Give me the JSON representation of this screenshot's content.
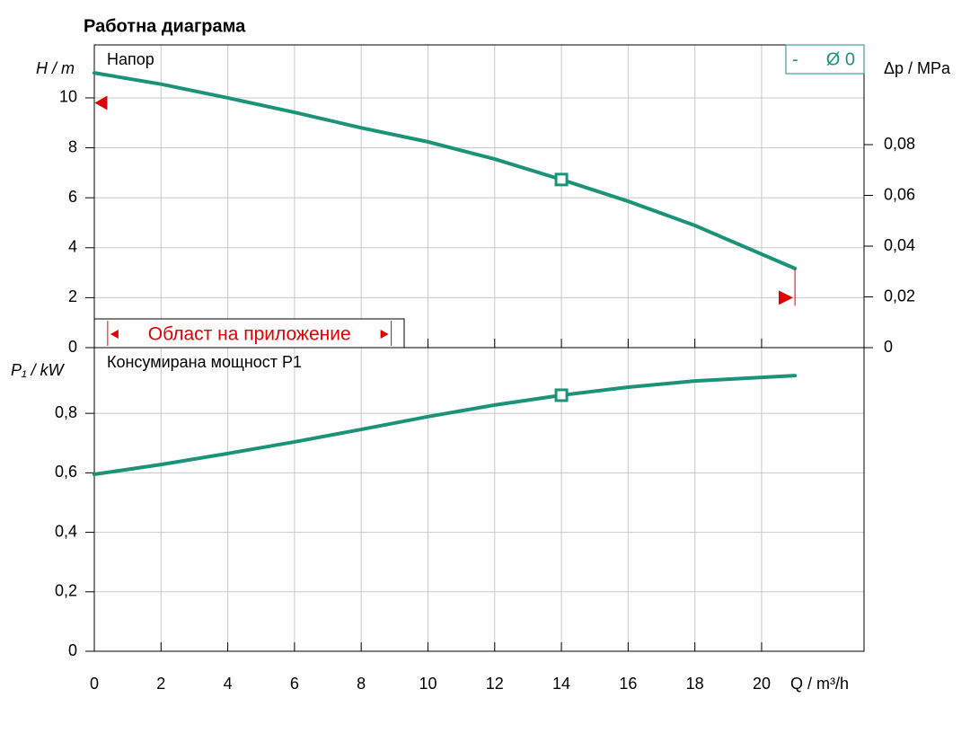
{
  "title": "Работна диаграма",
  "chart_data": [
    {
      "type": "line",
      "subtitle": "Напор",
      "ylabel": "H / m",
      "y2label": "Δp / MPa",
      "x": [
        0,
        2,
        4,
        6,
        8,
        10,
        12,
        14,
        16,
        18,
        21
      ],
      "series": [
        {
          "name": "Ø 0",
          "color": "#1a9378",
          "values": [
            11.0,
            10.55,
            10.0,
            9.42,
            8.8,
            8.24,
            7.55,
            6.73,
            5.86,
            4.89,
            3.17
          ]
        }
      ],
      "legend_prefix": "-",
      "operating_point": {
        "x": 14,
        "y": 6.73
      },
      "limits": [
        {
          "x": 0.2,
          "y": 9.8
        },
        {
          "x": 20.7,
          "y": 2.0
        }
      ],
      "application_range": {
        "label": "Област на приложение",
        "from": 0.4,
        "to": 8.9
      },
      "xlim": [
        0,
        23.07
      ],
      "xticks": [
        0,
        2,
        4,
        6,
        8,
        10,
        12,
        14,
        16,
        18,
        20
      ],
      "ylim": [
        0,
        12.12
      ],
      "yticks": [
        0,
        2,
        4,
        6,
        8,
        10
      ],
      "y2lim": [
        0,
        0.1193
      ],
      "y2ticks": [
        0,
        {
          "value": 0.02,
          "label": "0,02"
        },
        {
          "value": 0.04,
          "label": "0,04"
        },
        {
          "value": 0.06,
          "label": "0,06"
        },
        {
          "value": 0.08,
          "label": "0,08"
        }
      ],
      "grid": true
    },
    {
      "type": "line",
      "subtitle": "Консумирана мощност P1",
      "ylabel": "P₁ / kW",
      "xlabel": "Q / m³/h",
      "x": [
        0,
        2,
        4,
        6,
        8,
        10,
        12,
        14,
        16,
        18,
        21
      ],
      "series": [
        {
          "name": "P1",
          "color": "#1a9378",
          "values": [
            0.595,
            0.628,
            0.665,
            0.704,
            0.746,
            0.789,
            0.828,
            0.861,
            0.888,
            0.909,
            0.927
          ]
        }
      ],
      "operating_point": {
        "x": 14,
        "y": 0.861
      },
      "xlim": [
        0,
        23.07
      ],
      "xticks": [
        0,
        2,
        4,
        6,
        8,
        10,
        12,
        14,
        16,
        18,
        20
      ],
      "ylim": [
        0,
        1.021
      ],
      "yticks": [
        0,
        {
          "value": 0.2,
          "label": "0,2"
        },
        {
          "value": 0.4,
          "label": "0,4"
        },
        {
          "value": 0.6,
          "label": "0,6"
        },
        {
          "value": 0.8,
          "label": "0,8"
        }
      ],
      "grid": true
    }
  ]
}
